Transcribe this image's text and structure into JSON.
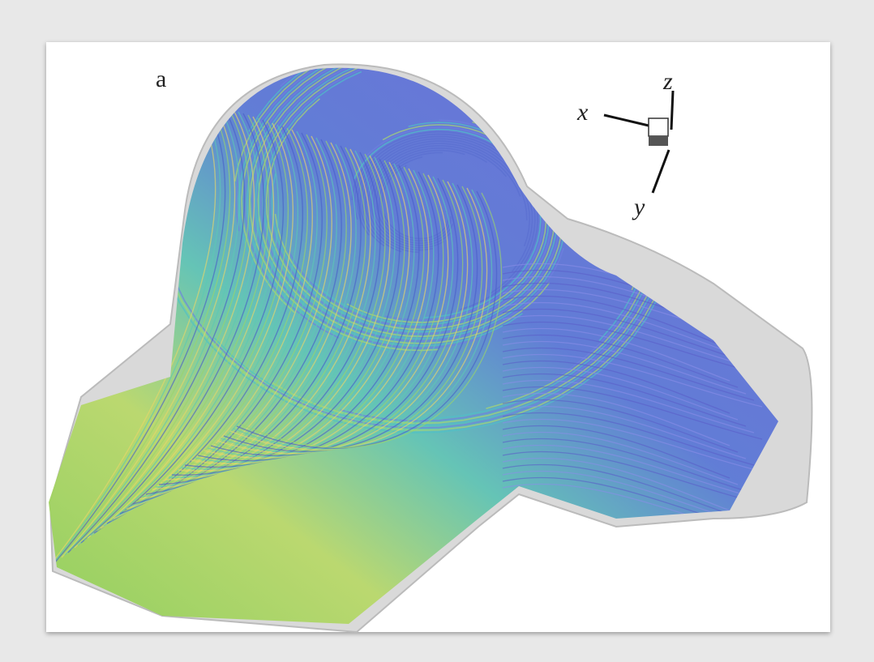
{
  "figure": {
    "panel_label": "a",
    "axes": {
      "x": "x",
      "y": "y",
      "z": "z"
    }
  }
}
